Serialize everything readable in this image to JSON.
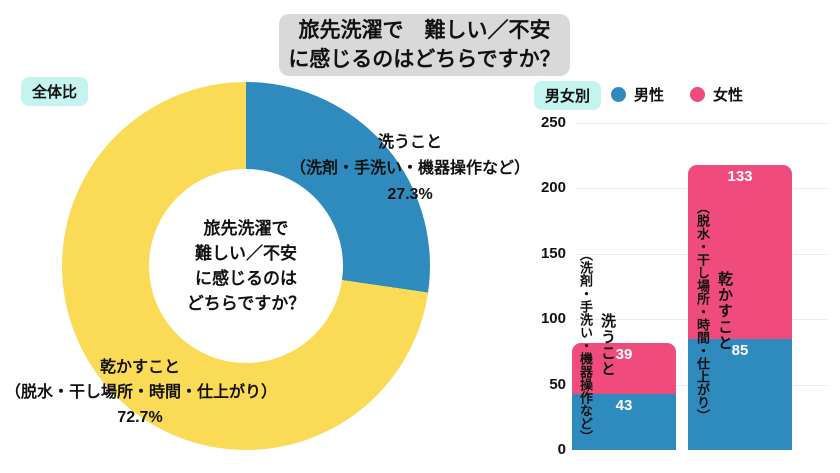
{
  "title": {
    "line1": "旅先洗濯で　難しい／不安",
    "line2": "に感じるのはどちらですか？"
  },
  "overall": {
    "badge": "全体比",
    "center_lines": [
      "旅先洗濯で",
      "難しい／不安",
      "に感じるのは",
      "どちらですか？"
    ],
    "washing_label": {
      "name": "洗うこと",
      "detail": "（洗剤・手洗い・機器操作など）",
      "percent": "27.3%"
    },
    "drying_label": {
      "name": "乾かすこと",
      "detail": "（脱水・干し場所・時間・仕上がり）",
      "percent": "72.7%"
    }
  },
  "by_gender": {
    "badge": "男女別",
    "bar_labels": {
      "washing": {
        "name": "洗うこと",
        "detail": "（洗剤・手洗い・機器操作など）"
      },
      "drying": {
        "name": "乾かすこと",
        "detail": "（脱水・干し場所・時間・仕上がり）"
      }
    }
  },
  "colors": {
    "male_blue": "#2F8BBE",
    "female_pink": "#EF4C7D",
    "overall_yellow": "#FBDB56",
    "badge_mint": "#C5F3EF",
    "title_gray": "#D9D9D9",
    "gridline_gray": "#ECECEC"
  },
  "chart_data": [
    {
      "type": "pie",
      "donut": true,
      "title": "全体比",
      "labels": [
        "洗うこと（洗剤・手洗い・機器操作など）",
        "乾かすこと（脱水・干し場所・時間・仕上がり）"
      ],
      "values": [
        27.3,
        72.7
      ],
      "unit": "%",
      "colors": [
        "#2F8BBE",
        "#FBDB56"
      ],
      "start_angle_deg": 0,
      "direction": "clockwise",
      "center_text": "旅先洗濯で難しい／不安に感じるのはどちらですか？"
    },
    {
      "type": "bar",
      "stacked": true,
      "title": "男女別",
      "categories": [
        "洗うこと（洗剤・手洗い・機器操作など）",
        "乾かすこと（脱水・干し場所・時間・仕上がり）"
      ],
      "series": [
        {
          "name": "男性",
          "color": "#2F8BBE",
          "values": [
            43,
            85
          ]
        },
        {
          "name": "女性",
          "color": "#EF4C7D",
          "values": [
            39,
            133
          ]
        }
      ],
      "totals": [
        82,
        218
      ],
      "ylim": [
        0,
        250
      ],
      "yticks": [
        0,
        50,
        100,
        150,
        200,
        250
      ],
      "grid": true,
      "legend_position": "top"
    }
  ]
}
